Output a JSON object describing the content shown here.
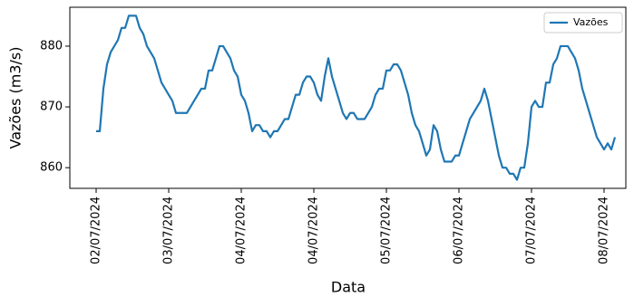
{
  "chart_data": {
    "type": "line",
    "x_label": "Data",
    "y_label": "Vazões (m3/s)",
    "x": [
      0,
      1,
      2,
      3,
      4,
      5,
      6,
      7,
      8,
      9,
      10,
      11,
      12,
      13,
      14,
      15,
      16,
      17,
      18,
      19,
      20,
      21,
      22,
      23,
      24,
      25,
      26,
      27,
      28,
      29,
      30,
      31,
      32,
      33,
      34,
      35,
      36,
      37,
      38,
      39,
      40,
      41,
      42,
      43,
      44,
      45,
      46,
      47,
      48,
      49,
      50,
      51,
      52,
      53,
      54,
      55,
      56,
      57,
      58,
      59,
      60,
      61,
      62,
      63,
      64,
      65,
      66,
      67,
      68,
      69,
      70,
      71,
      72,
      73,
      74,
      75,
      76,
      77,
      78,
      79,
      80,
      81,
      82,
      83,
      84,
      85,
      86,
      87,
      88,
      89,
      90,
      91,
      92,
      93,
      94,
      95,
      96,
      97,
      98,
      99,
      100,
      101,
      102,
      103,
      104,
      105,
      106,
      107,
      108,
      109,
      110,
      111,
      112,
      113,
      114,
      115,
      116,
      117,
      118,
      119,
      120,
      121,
      122,
      123,
      124,
      125,
      126,
      127,
      128,
      129,
      130,
      131,
      132,
      133,
      134,
      135,
      136,
      137,
      138,
      139,
      140,
      141,
      142,
      143
    ],
    "series": [
      {
        "name": "Vazões",
        "color": "#1f77b4",
        "values": [
          866,
          866,
          873,
          877,
          879,
          880,
          881,
          883,
          883,
          885,
          885,
          885,
          883,
          882,
          880,
          879,
          878,
          876,
          874,
          873,
          872,
          871,
          869,
          869,
          869,
          869,
          870,
          871,
          872,
          873,
          873,
          876,
          876,
          878,
          880,
          880,
          879,
          878,
          876,
          875,
          872,
          871,
          869,
          866,
          867,
          867,
          866,
          866,
          865,
          866,
          866,
          867,
          868,
          868,
          870,
          872,
          872,
          874,
          875,
          875,
          874,
          872,
          871,
          875,
          878,
          875,
          873,
          871,
          869,
          868,
          869,
          869,
          868,
          868,
          868,
          869,
          870,
          872,
          873,
          873,
          876,
          876,
          877,
          877,
          876,
          874,
          872,
          869,
          867,
          866,
          864,
          862,
          863,
          867,
          866,
          863,
          861,
          861,
          861,
          862,
          862,
          864,
          866,
          868,
          869,
          870,
          871,
          873,
          871,
          868,
          865,
          862,
          860,
          860,
          859,
          859,
          858,
          860,
          860,
          864,
          870,
          871,
          870,
          870,
          874,
          874,
          877,
          878,
          880,
          880,
          880,
          879,
          878,
          876,
          873,
          871,
          869,
          867,
          865,
          864,
          863,
          864,
          863,
          865
        ]
      }
    ],
    "xlim": [
      -7.25,
      146
    ],
    "xticks": [
      {
        "value": 0,
        "label": "02/07/2024"
      },
      {
        "value": 20,
        "label": "03/07/2024"
      },
      {
        "value": 40,
        "label": "04/07/2024"
      },
      {
        "value": 60,
        "label": "04/07/2024"
      },
      {
        "value": 80,
        "label": "05/07/2024"
      },
      {
        "value": 100,
        "label": "06/07/2024"
      },
      {
        "value": 120,
        "label": "07/07/2024"
      },
      {
        "value": 140,
        "label": "08/07/2024"
      }
    ],
    "ylim": [
      856.6,
      886.4
    ],
    "yticks": [
      860,
      870,
      880
    ],
    "grid": false,
    "legend": "upper right"
  }
}
